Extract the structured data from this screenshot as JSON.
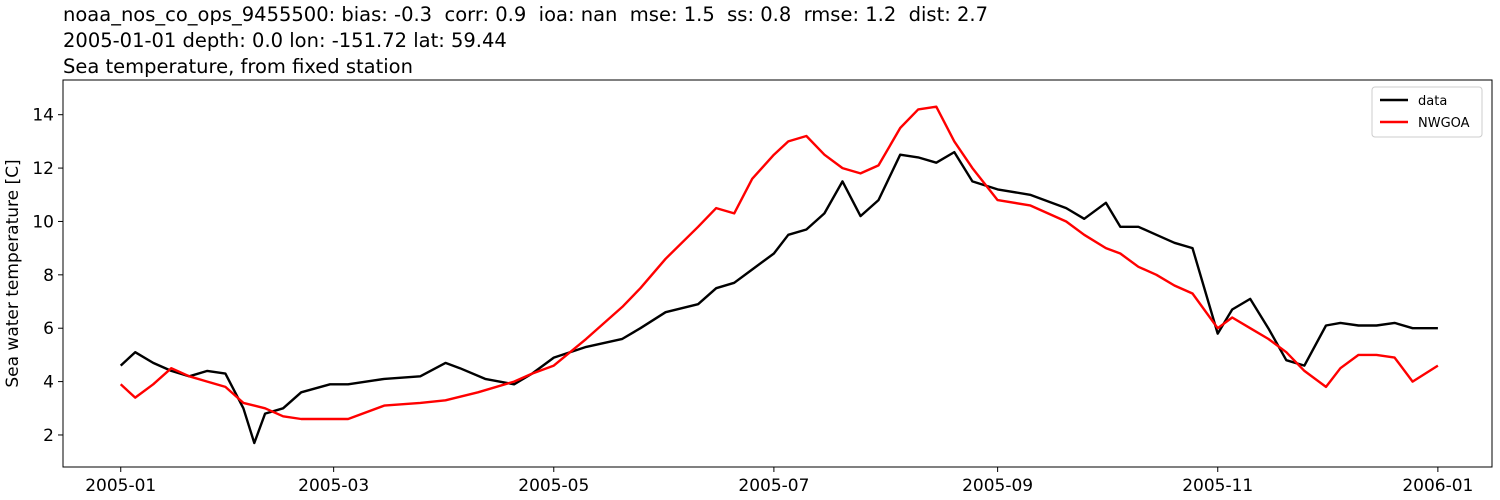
{
  "titles": [
    "noaa_nos_co_ops_9455500: bias: -0.3  corr: 0.9  ioa: nan  mse: 1.5  ss: 0.8  rmse: 1.2  dist: 2.7",
    "2005-01-01 depth: 0.0 lon: -151.72 lat: 59.44",
    "Sea temperature, from fixed station"
  ],
  "chart_data": {
    "type": "line",
    "title": "noaa_nos_co_ops_9455500: bias: -0.3  corr: 0.9  ioa: nan  mse: 1.5  ss: 0.8  rmse: 1.2  dist: 2.7",
    "subtitle": "2005-01-01 depth: 0.0 lon: -151.72 lat: 59.44 / Sea temperature, from fixed station",
    "xlabel": "",
    "ylabel": "Sea water temperature [C]",
    "xlim": [
      "2004-12-16",
      "2006-01-16"
    ],
    "ylim": [
      0.8,
      15.3
    ],
    "x_ticks": [
      "2005-01-01",
      "2005-03-01",
      "2005-05-01",
      "2005-07-01",
      "2005-09-01",
      "2005-11-01",
      "2006-01-01"
    ],
    "x_tick_labels": [
      "2005-01",
      "2005-03",
      "2005-05",
      "2005-07",
      "2005-09",
      "2005-11",
      "2006-01"
    ],
    "y_ticks": [
      2,
      4,
      6,
      8,
      10,
      12,
      14
    ],
    "grid": false,
    "legend_position": "top-right",
    "series": [
      {
        "name": "data",
        "color": "#000000",
        "x": [
          "2005-01-01",
          "2005-01-05",
          "2005-01-10",
          "2005-01-15",
          "2005-01-20",
          "2005-01-25",
          "2005-01-30",
          "2005-02-04",
          "2005-02-07",
          "2005-02-10",
          "2005-02-15",
          "2005-02-20",
          "2005-02-28",
          "2005-03-05",
          "2005-03-15",
          "2005-03-25",
          "2005-04-01",
          "2005-04-05",
          "2005-04-12",
          "2005-04-20",
          "2005-04-25",
          "2005-05-01",
          "2005-05-10",
          "2005-05-20",
          "2005-05-25",
          "2005-06-01",
          "2005-06-10",
          "2005-06-15",
          "2005-06-20",
          "2005-06-25",
          "2005-07-01",
          "2005-07-05",
          "2005-07-10",
          "2005-07-15",
          "2005-07-20",
          "2005-07-25",
          "2005-07-30",
          "2005-08-05",
          "2005-08-10",
          "2005-08-15",
          "2005-08-20",
          "2005-08-25",
          "2005-09-01",
          "2005-09-10",
          "2005-09-20",
          "2005-09-25",
          "2005-10-01",
          "2005-10-05",
          "2005-10-10",
          "2005-10-15",
          "2005-10-20",
          "2005-10-25",
          "2005-11-01",
          "2005-11-05",
          "2005-11-10",
          "2005-11-15",
          "2005-11-20",
          "2005-11-25",
          "2005-12-01",
          "2005-12-05",
          "2005-12-10",
          "2005-12-15",
          "2005-12-20",
          "2005-12-25",
          "2006-01-01"
        ],
        "values": [
          4.6,
          5.1,
          4.7,
          4.4,
          4.2,
          4.4,
          4.3,
          3.0,
          1.7,
          2.8,
          3.0,
          3.6,
          3.9,
          3.9,
          4.1,
          4.2,
          4.7,
          4.5,
          4.1,
          3.9,
          4.3,
          4.9,
          5.3,
          5.6,
          6.0,
          6.6,
          6.9,
          7.5,
          7.7,
          8.2,
          8.8,
          9.5,
          9.7,
          10.3,
          11.5,
          10.2,
          10.8,
          12.5,
          12.4,
          12.2,
          12.6,
          11.5,
          11.2,
          11.0,
          10.5,
          10.1,
          10.7,
          9.8,
          9.8,
          9.5,
          9.2,
          9.0,
          5.8,
          6.7,
          7.1,
          6.0,
          4.8,
          4.6,
          6.1,
          6.2,
          6.1,
          6.1,
          6.2,
          6.0,
          6.0
        ]
      },
      {
        "name": "NWGOA",
        "color": "#ff0000",
        "x": [
          "2005-01-01",
          "2005-01-05",
          "2005-01-10",
          "2005-01-15",
          "2005-01-20",
          "2005-01-25",
          "2005-01-30",
          "2005-02-04",
          "2005-02-10",
          "2005-02-15",
          "2005-02-20",
          "2005-02-28",
          "2005-03-05",
          "2005-03-15",
          "2005-03-25",
          "2005-04-01",
          "2005-04-10",
          "2005-04-20",
          "2005-04-25",
          "2005-05-01",
          "2005-05-10",
          "2005-05-20",
          "2005-05-25",
          "2005-06-01",
          "2005-06-10",
          "2005-06-15",
          "2005-06-20",
          "2005-06-25",
          "2005-07-01",
          "2005-07-05",
          "2005-07-10",
          "2005-07-15",
          "2005-07-20",
          "2005-07-25",
          "2005-07-30",
          "2005-08-05",
          "2005-08-10",
          "2005-08-15",
          "2005-08-20",
          "2005-08-25",
          "2005-09-01",
          "2005-09-10",
          "2005-09-20",
          "2005-09-25",
          "2005-10-01",
          "2005-10-05",
          "2005-10-10",
          "2005-10-15",
          "2005-10-20",
          "2005-10-25",
          "2005-11-01",
          "2005-11-05",
          "2005-11-10",
          "2005-11-15",
          "2005-11-20",
          "2005-11-25",
          "2005-12-01",
          "2005-12-05",
          "2005-12-10",
          "2005-12-15",
          "2005-12-20",
          "2005-12-25",
          "2006-01-01"
        ],
        "values": [
          3.9,
          3.4,
          3.9,
          4.5,
          4.2,
          4.0,
          3.8,
          3.2,
          3.0,
          2.7,
          2.6,
          2.6,
          2.6,
          3.1,
          3.2,
          3.3,
          3.6,
          4.0,
          4.3,
          4.6,
          5.6,
          6.8,
          7.5,
          8.6,
          9.8,
          10.5,
          10.3,
          11.6,
          12.5,
          13.0,
          13.2,
          12.5,
          12.0,
          11.8,
          12.1,
          13.5,
          14.2,
          14.3,
          13.0,
          12.0,
          10.8,
          10.6,
          10.0,
          9.5,
          9.0,
          8.8,
          8.3,
          8.0,
          7.6,
          7.3,
          6.0,
          6.4,
          6.0,
          5.6,
          5.1,
          4.4,
          3.8,
          4.5,
          5.0,
          5.0,
          4.9,
          4.0,
          4.6
        ]
      }
    ]
  }
}
